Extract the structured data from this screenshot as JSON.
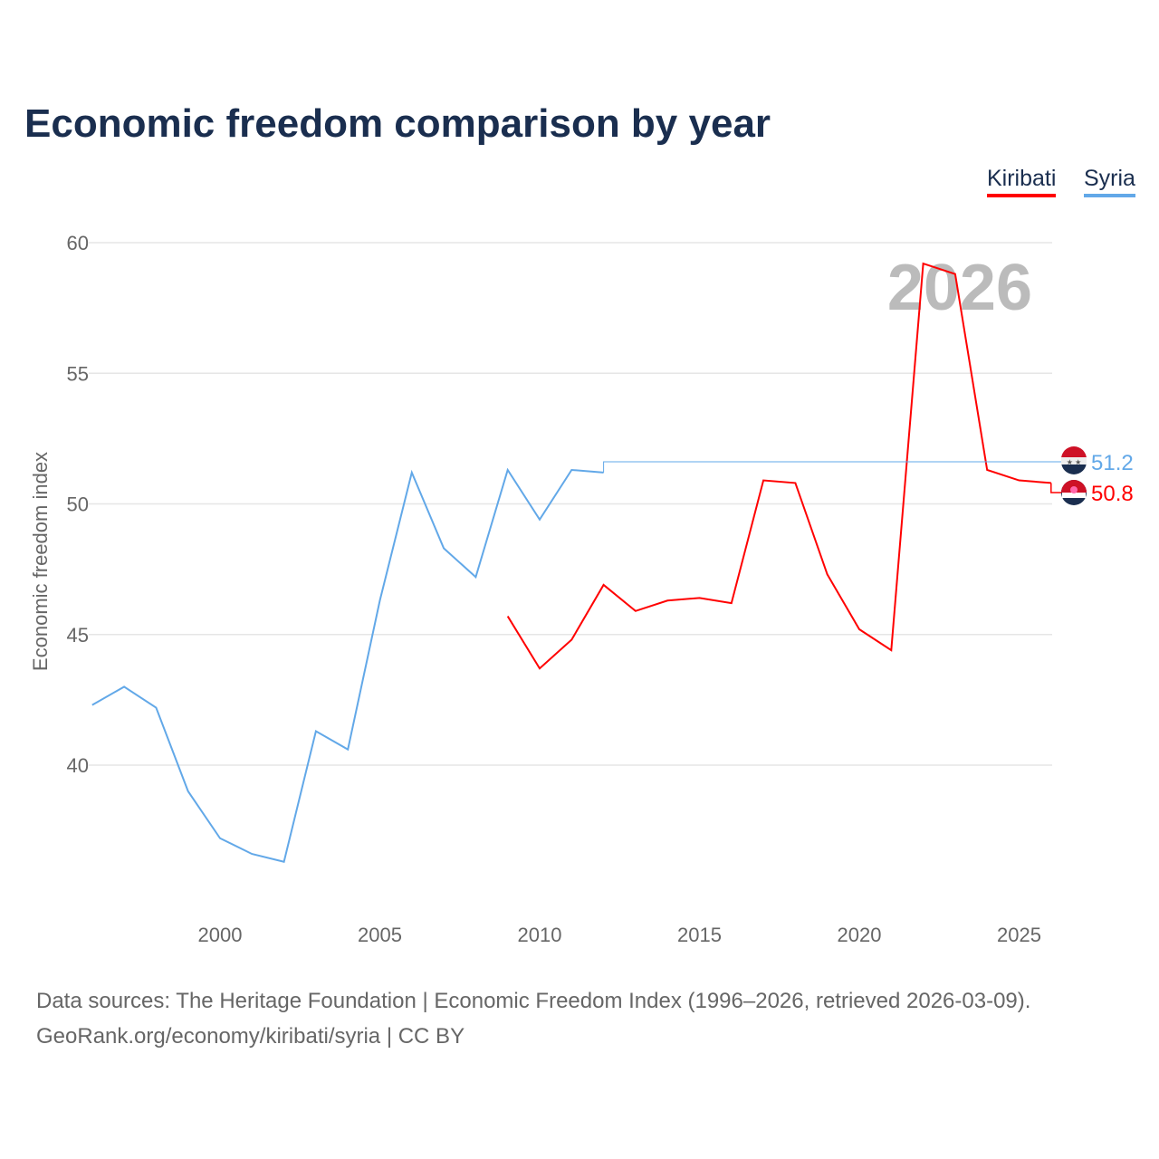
{
  "title": "Economic freedom comparison by year",
  "legend": [
    "Kiribati",
    "Syria"
  ],
  "source_line1": "Data sources: The Heritage Foundation | Economic Freedom Index (1996–2026, retrieved 2026-03-09).",
  "source_line2": "GeoRank.org/economy/kiribati/syria | CC BY",
  "chart_data": {
    "type": "line",
    "title": "Economic freedom comparison by year",
    "ylabel": "Economic freedom index",
    "xlabel": "",
    "ylim": [
      34.5,
      61
    ],
    "xlim": [
      1996,
      2026.2
    ],
    "yticks": [
      40,
      45,
      50,
      55,
      60
    ],
    "xticks": [
      2000,
      2005,
      2010,
      2015,
      2020,
      2025
    ],
    "year_watermark": "2026",
    "grid": true,
    "legend_position": "top-right",
    "series": [
      {
        "name": "Kiribati",
        "color": "#ff0000",
        "end_label": "50.8",
        "x": [
          2009,
          2010,
          2011,
          2012,
          2013,
          2014,
          2015,
          2016,
          2017,
          2018,
          2019,
          2020,
          2021,
          2022,
          2023,
          2024,
          2025,
          2026
        ],
        "values": [
          45.7,
          43.7,
          44.8,
          46.9,
          45.9,
          46.3,
          46.4,
          46.2,
          50.9,
          50.8,
          47.3,
          45.2,
          44.4,
          59.2,
          58.8,
          51.3,
          50.9,
          50.8
        ]
      },
      {
        "name": "Syria",
        "color": "#62a8e8",
        "end_label": "51.2",
        "x": [
          1996,
          1997,
          1998,
          1999,
          2000,
          2001,
          2002,
          2003,
          2004,
          2005,
          2006,
          2007,
          2008,
          2009,
          2010,
          2011,
          2012
        ],
        "values": [
          42.3,
          43.0,
          42.2,
          39.0,
          37.2,
          36.6,
          36.3,
          41.3,
          40.6,
          46.3,
          51.2,
          48.3,
          47.2,
          51.3,
          49.4,
          51.3,
          51.2
        ]
      }
    ]
  }
}
